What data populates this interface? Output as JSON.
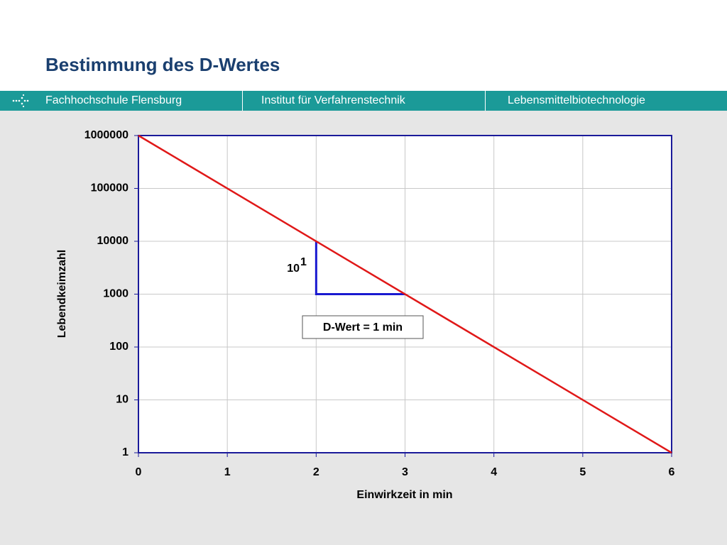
{
  "title": "Bestimmung des D-Wertes",
  "header": [
    "Fachhochschule Flensburg",
    "Institut für Verfahrenstechnik",
    "Lebensmittelbiotechnologie"
  ],
  "chart_data": {
    "type": "line",
    "x_label": "Einwirkzeit in min",
    "y_label": "Lebendkeimzahl",
    "x": [
      0,
      6
    ],
    "series": [
      {
        "color": "#e01818",
        "values": [
          1000000,
          1
        ]
      }
    ],
    "xlim": [
      0,
      6
    ],
    "xticks": [
      0,
      1,
      2,
      3,
      4,
      5,
      6
    ],
    "ylim": [
      1,
      1000000
    ],
    "yticks": [
      1,
      10,
      100,
      1000,
      10000,
      100000,
      1000000
    ],
    "yscale": "log",
    "grid": true,
    "frame_color": "#1a1a9a",
    "step": {
      "color": "#1a1ad0",
      "x": [
        2,
        2,
        3
      ],
      "values": [
        10000,
        1000,
        1000
      ]
    },
    "step_label": {
      "base": "10",
      "exponent": "1"
    },
    "annotation": "D-Wert = 1 min"
  }
}
